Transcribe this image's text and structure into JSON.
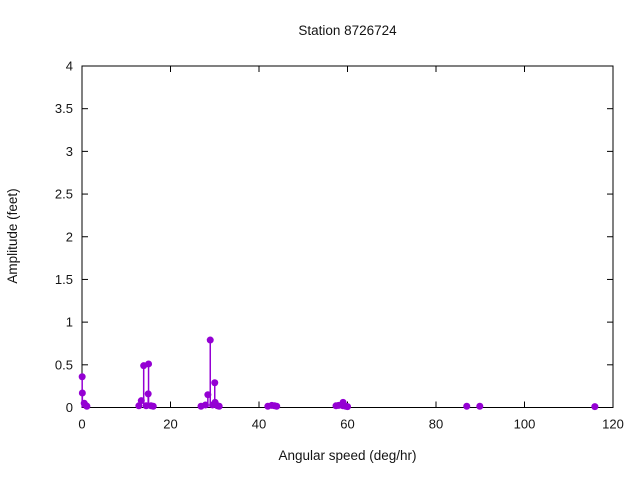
{
  "chart_data": {
    "type": "scatter",
    "style": "impulses-with-points",
    "title": "Station 8726724",
    "xlabel": "Angular speed (deg/hr)",
    "ylabel": "Amplitude (feet)",
    "xlim": [
      0,
      120
    ],
    "ylim": [
      0,
      4
    ],
    "xticks": [
      0,
      20,
      40,
      60,
      80,
      100,
      120
    ],
    "xtick_labels": [
      "0",
      "20",
      "40",
      "60",
      "80",
      "100",
      "120"
    ],
    "yticks": [
      0,
      0.5,
      1,
      1.5,
      2,
      2.5,
      3,
      3.5,
      4
    ],
    "ytick_labels": [
      "0",
      "0.5",
      "1",
      "1.5",
      "2",
      "2.5",
      "3",
      "3.5",
      "4"
    ],
    "grid": false,
    "legend": "none",
    "color": "#9400d3",
    "border_color": "#000000",
    "points": [
      [
        0.04,
        0.36
      ],
      [
        0.08,
        0.17
      ],
      [
        0.5,
        0.05
      ],
      [
        1.0,
        0.02
      ],
      [
        1.1,
        0.015
      ],
      [
        12.85,
        0.02
      ],
      [
        13.4,
        0.08
      ],
      [
        13.94,
        0.49
      ],
      [
        14.5,
        0.02
      ],
      [
        14.96,
        0.16
      ],
      [
        15.04,
        0.51
      ],
      [
        15.6,
        0.02
      ],
      [
        16.1,
        0.015
      ],
      [
        26.9,
        0.015
      ],
      [
        27.9,
        0.03
      ],
      [
        28.44,
        0.15
      ],
      [
        28.98,
        0.79
      ],
      [
        29.5,
        0.03
      ],
      [
        30.0,
        0.29
      ],
      [
        30.08,
        0.06
      ],
      [
        30.6,
        0.02
      ],
      [
        31.0,
        0.015
      ],
      [
        42.0,
        0.015
      ],
      [
        42.9,
        0.025
      ],
      [
        43.5,
        0.02
      ],
      [
        44.0,
        0.015
      ],
      [
        57.4,
        0.02
      ],
      [
        58.0,
        0.025
      ],
      [
        58.98,
        0.02
      ],
      [
        59.0,
        0.06
      ],
      [
        59.6,
        0.015
      ],
      [
        60.0,
        0.01
      ],
      [
        86.95,
        0.015
      ],
      [
        89.9,
        0.015
      ],
      [
        115.9,
        0.01
      ]
    ]
  }
}
